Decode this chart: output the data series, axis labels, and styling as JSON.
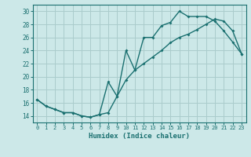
{
  "xlabel": "Humidex (Indice chaleur)",
  "bg_color": "#cce8e8",
  "grid_color": "#aacccc",
  "line_color": "#1a7070",
  "xlim": [
    -0.5,
    23.5
  ],
  "ylim": [
    13.0,
    31.0
  ],
  "xticks": [
    0,
    1,
    2,
    3,
    4,
    5,
    6,
    7,
    8,
    9,
    10,
    11,
    12,
    13,
    14,
    15,
    16,
    17,
    18,
    19,
    20,
    21,
    22,
    23
  ],
  "yticks": [
    14,
    16,
    18,
    20,
    22,
    24,
    26,
    28,
    30
  ],
  "curve1_x": [
    0,
    1,
    2,
    3,
    4,
    5,
    6,
    7,
    8,
    9,
    10,
    11,
    12,
    13,
    14,
    15,
    16,
    17,
    18,
    19,
    20,
    21,
    22,
    23
  ],
  "curve1_y": [
    16.5,
    15.5,
    15.0,
    14.5,
    14.5,
    14.0,
    13.8,
    14.2,
    19.2,
    17.0,
    24.0,
    21.0,
    26.0,
    26.0,
    27.8,
    28.3,
    30.0,
    29.2,
    29.2,
    29.2,
    28.5,
    27.0,
    25.3,
    23.5
  ],
  "curve2_x": [
    0,
    1,
    2,
    3,
    4,
    5,
    6,
    7,
    8,
    9,
    10,
    11,
    12,
    13,
    14,
    15,
    16,
    17,
    18,
    19,
    20,
    21,
    22,
    23
  ],
  "curve2_y": [
    16.5,
    15.5,
    15.0,
    14.5,
    14.5,
    14.0,
    13.8,
    14.2,
    14.5,
    17.0,
    19.5,
    21.0,
    22.0,
    23.0,
    24.0,
    25.2,
    26.0,
    26.5,
    27.2,
    28.0,
    28.8,
    28.5,
    27.0,
    23.5
  ]
}
